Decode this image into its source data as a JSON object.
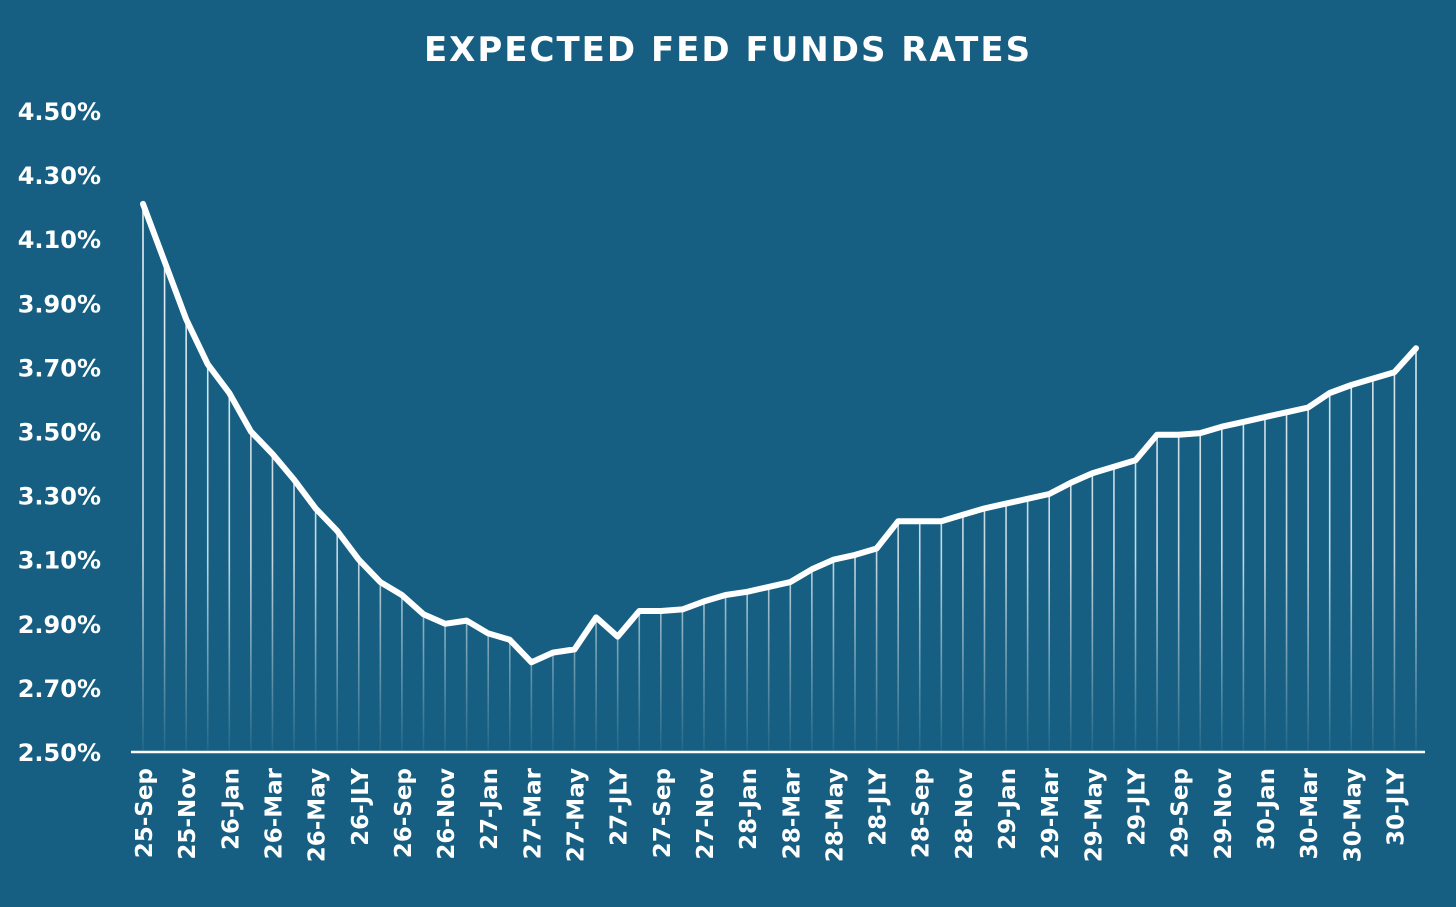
{
  "colors": {
    "background": "#165f82",
    "line": "#ffffff",
    "drop_lines": "#ffffff"
  },
  "chart_data": {
    "type": "line",
    "title": "EXPECTED FED FUNDS RATES",
    "xlabel": "",
    "ylabel": "",
    "ylim": [
      2.5,
      4.5
    ],
    "grid": false,
    "legend": "none",
    "y_ticks": [
      "4.50%",
      "4.30%",
      "4.10%",
      "3.90%",
      "3.70%",
      "3.50%",
      "3.30%",
      "3.10%",
      "2.90%",
      "2.70%",
      "2.50%"
    ],
    "x_tick_labels": [
      "25-Sep",
      "25-Nov",
      "26-Jan",
      "26-Mar",
      "26-May",
      "26-JLY",
      "26-Sep",
      "26-Nov",
      "27-Jan",
      "27-Mar",
      "27-May",
      "27-JLY",
      "27-Sep",
      "27-Nov",
      "28-Jan",
      "28-Mar",
      "28-May",
      "28-JLY",
      "28-Sep",
      "28-Nov",
      "29-Jan",
      "29-Mar",
      "29-May",
      "29-JLY",
      "29-Sep",
      "29-Nov",
      "30-Jan",
      "30-Mar",
      "30-May",
      "30-JLY"
    ],
    "series": [
      {
        "values": [
          4.21,
          4.03,
          3.85,
          3.71,
          3.62,
          3.5,
          3.43,
          3.35,
          3.26,
          3.19,
          3.1,
          3.03,
          2.99,
          2.93,
          2.9,
          2.91,
          2.87,
          2.85,
          2.78,
          2.81,
          2.82,
          2.92,
          2.86,
          2.94,
          2.94,
          2.945,
          2.97,
          2.99,
          3.0,
          3.015,
          3.03,
          3.07,
          3.1,
          3.115,
          3.135,
          3.22,
          3.22,
          3.22,
          3.24,
          3.26,
          3.275,
          3.29,
          3.305,
          3.34,
          3.37,
          3.39,
          3.41,
          3.49,
          3.49,
          3.495,
          3.515,
          3.53,
          3.545,
          3.56,
          3.575,
          3.62,
          3.645,
          3.665,
          3.685,
          3.76
        ]
      }
    ]
  }
}
